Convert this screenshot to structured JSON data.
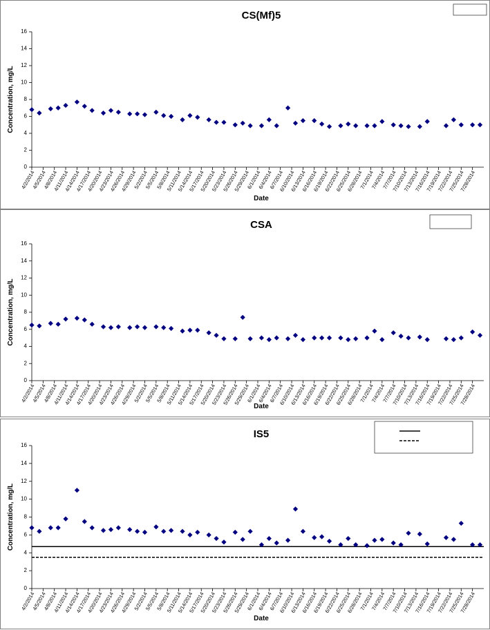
{
  "chart_data": [
    {
      "type": "scatter",
      "title": "CS(Mf)5",
      "x_label": "Date",
      "y_label": "Concentration, mg/L",
      "x": [
        "4/2/2014",
        "4/4/2014",
        "4/7/2014",
        "4/9/2014",
        "4/11/2014",
        "4/14/2014",
        "4/16/2014",
        "4/18/2014",
        "4/21/2014",
        "4/23/2014",
        "4/25/2014",
        "4/28/2014",
        "4/30/2014",
        "5/2/2014",
        "5/5/2014",
        "5/7/2014",
        "5/9/2014",
        "5/12/2014",
        "5/14/2014",
        "5/16/2014",
        "5/19/2014",
        "5/21/2014",
        "5/23/2014",
        "5/26/2014",
        "5/28/2014",
        "5/30/2014",
        "6/2/2014",
        "6/4/2014",
        "6/6/2014",
        "6/9/2014",
        "6/11/2014",
        "6/13/2014",
        "6/16/2014",
        "6/18/2014",
        "6/20/2014",
        "6/23/2014",
        "6/25/2014",
        "6/27/2014",
        "6/30/2014",
        "7/2/2014",
        "7/4/2014",
        "7/7/2014",
        "7/9/2014",
        "7/11/2014",
        "7/14/2014",
        "7/16/2014",
        "7/21/2014",
        "7/23/2014",
        "7/25/2014",
        "7/28/2014",
        "7/30/2014"
      ],
      "series": [
        {
          "color": "#000080",
          "values": [
            6.8,
            6.4,
            6.9,
            7.0,
            7.3,
            7.7,
            7.2,
            6.7,
            6.4,
            6.7,
            6.5,
            6.3,
            6.3,
            6.2,
            6.5,
            6.1,
            6.0,
            5.6,
            6.1,
            5.9,
            5.6,
            5.3,
            5.3,
            5.0,
            5.2,
            4.9,
            4.9,
            5.6,
            4.9,
            7.0,
            5.2,
            5.5,
            5.5,
            5.1,
            4.8,
            4.9,
            5.1,
            4.9,
            4.9,
            4.9,
            5.4,
            5.0,
            4.9,
            4.8,
            4.8,
            5.4,
            4.9,
            5.6,
            5.0,
            5.0,
            5.0
          ]
        }
      ],
      "xlim": [
        "4/2/2014",
        "7/31/2014"
      ],
      "xticks": [
        "4/2/2014",
        "4/5/2014",
        "4/8/2014",
        "4/11/2014",
        "4/14/2014",
        "4/17/2014",
        "4/20/2014",
        "4/23/2014",
        "4/26/2014",
        "4/29/2014",
        "5/2/2014",
        "5/5/2014",
        "5/8/2014",
        "5/11/2014",
        "5/14/2014",
        "5/17/2014",
        "5/20/2014",
        "5/23/2014",
        "5/26/2014",
        "5/29/2014",
        "6/1/2014",
        "6/4/2014",
        "6/7/2014",
        "6/10/2014",
        "6/13/2014",
        "6/16/2014",
        "6/19/2014",
        "6/22/2014",
        "6/25/2014",
        "6/28/2014",
        "7/1/2014",
        "7/4/2014",
        "7/7/2014",
        "7/10/2014",
        "7/13/2014",
        "7/16/2014",
        "7/19/2014",
        "7/22/2014",
        "7/25/2014",
        "7/28/2014"
      ],
      "ylim": [
        0,
        16
      ],
      "yticks": [
        0,
        2,
        4,
        6,
        8,
        10,
        12,
        14,
        16
      ],
      "grid": false
    },
    {
      "type": "scatter",
      "title": "CSA",
      "x_label": "Date",
      "y_label": "Concentration, mg/L",
      "x": [
        "4/2/2014",
        "4/4/2014",
        "4/7/2014",
        "4/9/2014",
        "4/11/2014",
        "4/14/2014",
        "4/16/2014",
        "4/18/2014",
        "4/21/2014",
        "4/23/2014",
        "4/25/2014",
        "4/28/2014",
        "4/30/2014",
        "5/2/2014",
        "5/5/2014",
        "5/7/2014",
        "5/9/2014",
        "5/12/2014",
        "5/14/2014",
        "5/16/2014",
        "5/19/2014",
        "5/21/2014",
        "5/23/2014",
        "5/26/2014",
        "5/28/2014",
        "5/30/2014",
        "6/2/2014",
        "6/4/2014",
        "6/6/2014",
        "6/9/2014",
        "6/11/2014",
        "6/13/2014",
        "6/16/2014",
        "6/18/2014",
        "6/20/2014",
        "6/23/2014",
        "6/25/2014",
        "6/27/2014",
        "6/30/2014",
        "7/2/2014",
        "7/4/2014",
        "7/7/2014",
        "7/9/2014",
        "7/11/2014",
        "7/14/2014",
        "7/16/2014",
        "7/21/2014",
        "7/23/2014",
        "7/25/2014",
        "7/28/2014",
        "7/30/2014"
      ],
      "series": [
        {
          "color": "#000080",
          "values": [
            6.5,
            6.4,
            6.7,
            6.6,
            7.2,
            7.3,
            7.1,
            6.6,
            6.3,
            6.2,
            6.3,
            6.2,
            6.3,
            6.2,
            6.3,
            6.2,
            6.1,
            5.8,
            5.9,
            5.9,
            5.6,
            5.3,
            4.9,
            4.9,
            7.4,
            4.9,
            5.0,
            4.8,
            5.0,
            4.9,
            5.3,
            4.8,
            5.0,
            5.0,
            5.0,
            5.0,
            4.8,
            4.9,
            5.0,
            5.8,
            4.8,
            5.6,
            5.2,
            5.0,
            5.1,
            4.8,
            4.9,
            4.8,
            5.0,
            5.7,
            5.3
          ]
        }
      ],
      "xlim": [
        "4/2/2014",
        "7/31/2014"
      ],
      "xticks": [
        "4/2/2014",
        "4/5/2014",
        "4/8/2014",
        "4/11/2014",
        "4/14/2014",
        "4/17/2014",
        "4/20/2014",
        "4/23/2014",
        "4/26/2014",
        "4/29/2014",
        "5/2/2014",
        "5/5/2014",
        "5/8/2014",
        "5/11/2014",
        "5/14/2014",
        "5/17/2014",
        "5/20/2014",
        "5/23/2014",
        "5/26/2014",
        "5/29/2014",
        "6/1/2014",
        "6/4/2014",
        "6/7/2014",
        "6/10/2014",
        "6/13/2014",
        "6/16/2014",
        "6/19/2014",
        "6/22/2014",
        "6/25/2014",
        "6/28/2014",
        "7/1/2014",
        "7/4/2014",
        "7/7/2014",
        "7/10/2014",
        "7/13/2014",
        "7/16/2014",
        "7/19/2014",
        "7/22/2014",
        "7/25/2014",
        "7/28/2014"
      ],
      "ylim": [
        0,
        16
      ],
      "yticks": [
        0,
        2,
        4,
        6,
        8,
        10,
        12,
        14,
        16
      ],
      "grid": false
    },
    {
      "type": "scatter",
      "title": "IS5",
      "x_label": "Date",
      "y_label": "Concentration, mg/L",
      "x": [
        "4/2/2014",
        "4/4/2014",
        "4/7/2014",
        "4/9/2014",
        "4/11/2014",
        "4/14/2014",
        "4/16/2014",
        "4/18/2014",
        "4/21/2014",
        "4/23/2014",
        "4/25/2014",
        "4/28/2014",
        "4/30/2014",
        "5/2/2014",
        "5/5/2014",
        "5/7/2014",
        "5/9/2014",
        "5/12/2014",
        "5/14/2014",
        "5/16/2014",
        "5/19/2014",
        "5/21/2014",
        "5/23/2014",
        "5/26/2014",
        "5/28/2014",
        "5/30/2014",
        "6/2/2014",
        "6/4/2014",
        "6/6/2014",
        "6/9/2014",
        "6/11/2014",
        "6/13/2014",
        "6/16/2014",
        "6/18/2014",
        "6/20/2014",
        "6/23/2014",
        "6/25/2014",
        "6/27/2014",
        "6/30/2014",
        "7/2/2014",
        "7/4/2014",
        "7/7/2014",
        "7/9/2014",
        "7/11/2014",
        "7/14/2014",
        "7/16/2014",
        "7/21/2014",
        "7/23/2014",
        "7/25/2014",
        "7/28/2014",
        "7/30/2014"
      ],
      "series": [
        {
          "color": "#000080",
          "values": [
            6.8,
            6.4,
            6.8,
            6.8,
            7.8,
            11.0,
            7.5,
            6.8,
            6.5,
            6.6,
            6.8,
            6.6,
            6.4,
            6.3,
            6.9,
            6.4,
            6.5,
            6.4,
            6.0,
            6.3,
            6.0,
            5.6,
            5.2,
            6.3,
            5.5,
            6.4,
            4.9,
            5.6,
            5.1,
            5.4,
            8.9,
            6.4,
            5.7,
            5.8,
            5.3,
            4.9,
            5.6,
            4.9,
            4.8,
            5.4,
            5.5,
            5.1,
            4.9,
            6.2,
            6.1,
            5.0,
            5.7,
            5.5,
            7.3,
            4.9,
            4.9
          ]
        }
      ],
      "reference_lines": [
        {
          "value": 4.7,
          "style": "solid",
          "color": "#000000"
        },
        {
          "value": 3.5,
          "style": "dashed",
          "color": "#000000"
        }
      ],
      "xlim": [
        "4/2/2014",
        "7/31/2014"
      ],
      "xticks": [
        "4/2/2014",
        "4/5/2014",
        "4/8/2014",
        "4/11/2014",
        "4/14/2014",
        "4/17/2014",
        "4/20/2014",
        "4/23/2014",
        "4/26/2014",
        "4/29/2014",
        "5/2/2014",
        "5/5/2014",
        "5/8/2014",
        "5/11/2014",
        "5/14/2014",
        "5/17/2014",
        "5/20/2014",
        "5/23/2014",
        "5/26/2014",
        "5/29/2014",
        "6/1/2014",
        "6/4/2014",
        "6/7/2014",
        "6/10/2014",
        "6/13/2014",
        "6/16/2014",
        "6/19/2014",
        "6/22/2014",
        "6/25/2014",
        "6/28/2014",
        "7/1/2014",
        "7/4/2014",
        "7/7/2014",
        "7/10/2014",
        "7/13/2014",
        "7/16/2014",
        "7/19/2014",
        "7/22/2014",
        "7/25/2014",
        "7/28/2014"
      ],
      "ylim": [
        0,
        16
      ],
      "yticks": [
        0,
        2,
        4,
        6,
        8,
        10,
        12,
        14,
        16
      ],
      "grid": false
    }
  ]
}
